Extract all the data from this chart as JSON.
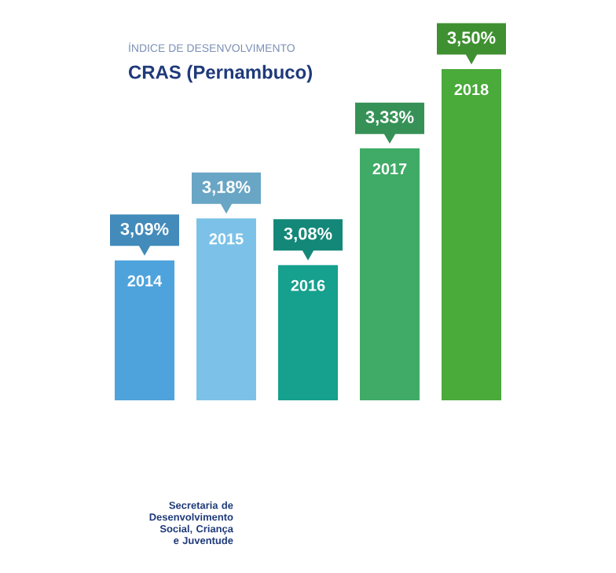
{
  "chart_data": {
    "type": "bar",
    "title": "ÍNDICE DE DESENVOLVIMENTO",
    "subtitle": "CRAS (Pernambuco)",
    "categories": [
      "2014",
      "2015",
      "2016",
      "2017",
      "2018"
    ],
    "values": [
      3.09,
      3.18,
      3.08,
      3.33,
      3.5
    ],
    "value_labels": [
      "3,09%",
      "3,18%",
      "3,08%",
      "3,33%",
      "3,50%"
    ],
    "colors": [
      "#4ea3dc",
      "#7cc2e8",
      "#16a08e",
      "#3fab66",
      "#4aaa3a"
    ],
    "ylim": [
      2.79,
      3.5
    ],
    "tick_labels": false,
    "annotations": [
      "Secretaria de Desenvolvimento Social, Criança e Juventude"
    ]
  }
}
